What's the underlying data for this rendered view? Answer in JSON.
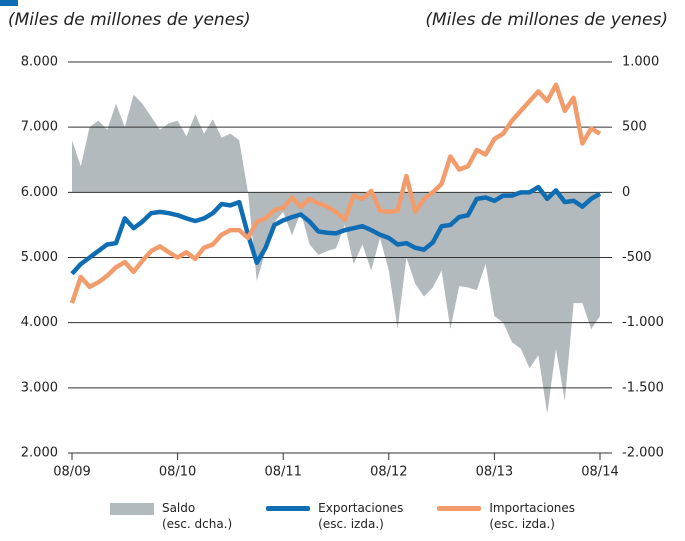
{
  "chart_data": {
    "type": "line",
    "y_label": "(Miles de millones de yenes)",
    "y2_label": "(Miles de millones de yenes)",
    "categories": [
      "08/09",
      null,
      null,
      null,
      null,
      null,
      null,
      null,
      null,
      null,
      null,
      null,
      "08/10",
      null,
      null,
      null,
      null,
      null,
      null,
      null,
      null,
      null,
      null,
      null,
      "08/11",
      null,
      null,
      null,
      null,
      null,
      null,
      null,
      null,
      null,
      null,
      null,
      "08/12",
      null,
      null,
      null,
      null,
      null,
      null,
      null,
      null,
      null,
      null,
      null,
      "08/13",
      null,
      null,
      null,
      null,
      null,
      null,
      null,
      null,
      null,
      null,
      null,
      "08/14"
    ],
    "ylim": [
      2000,
      8000
    ],
    "yticks": [
      {
        "value": 2000,
        "label": "2.000"
      },
      {
        "value": 3000,
        "label": "3.000"
      },
      {
        "value": 4000,
        "label": "4.000"
      },
      {
        "value": 5000,
        "label": "5.000"
      },
      {
        "value": 6000,
        "label": "6.000"
      },
      {
        "value": 7000,
        "label": "7.000"
      },
      {
        "value": 8000,
        "label": "8.000"
      }
    ],
    "y2lim": [
      -2000,
      1000
    ],
    "y2ticks": [
      {
        "value": -2000,
        "label": "-2.000"
      },
      {
        "value": -1500,
        "label": "-1.500"
      },
      {
        "value": -1000,
        "label": "-1.000"
      },
      -500,
      0,
      500,
      {
        "value": 1000,
        "label": "1.000"
      }
    ],
    "grid": true,
    "series": [
      {
        "name": "Saldo\n(esc. dcha.)",
        "type": "area",
        "axis": "y2",
        "color": "#b3babe",
        "values": [
          400,
          200,
          500,
          550,
          480,
          680,
          500,
          750,
          680,
          580,
          480,
          530,
          550,
          430,
          600,
          450,
          560,
          420,
          450,
          400,
          0,
          -680,
          -450,
          -230,
          -150,
          -330,
          -150,
          -400,
          -480,
          -450,
          -430,
          -250,
          -550,
          -400,
          -600,
          -350,
          -600,
          -1050,
          -500,
          -700,
          -800,
          -730,
          -600,
          -1050,
          -720,
          -730,
          -750,
          -550,
          -950,
          -1000,
          -1150,
          -1200,
          -1350,
          -1250,
          -1700,
          -1200,
          -1600,
          -850,
          -850,
          -1050,
          -950
        ]
      },
      {
        "name": "Exportaciones\n(esc. izda.)",
        "type": "line",
        "color": "#0f6db3",
        "values": [
          4750,
          4900,
          5000,
          5100,
          5200,
          5220,
          5600,
          5450,
          5550,
          5680,
          5700,
          5680,
          5650,
          5600,
          5560,
          5600,
          5680,
          5820,
          5800,
          5850,
          5350,
          4920,
          5150,
          5500,
          5570,
          5620,
          5660,
          5550,
          5400,
          5380,
          5370,
          5420,
          5450,
          5480,
          5420,
          5350,
          5300,
          5200,
          5220,
          5150,
          5120,
          5230,
          5480,
          5500,
          5620,
          5650,
          5900,
          5920,
          5870,
          5950,
          5950,
          6000,
          6000,
          6080,
          5900,
          6030,
          5850,
          5870,
          5780,
          5900,
          5980
        ]
      },
      {
        "name": "Importaciones\n(esc. izda.)",
        "type": "line",
        "color": "#f29b6b",
        "values": [
          4300,
          4700,
          4550,
          4620,
          4720,
          4850,
          4930,
          4780,
          4950,
          5100,
          5170,
          5080,
          5000,
          5080,
          4980,
          5150,
          5200,
          5350,
          5420,
          5420,
          5300,
          5550,
          5600,
          5730,
          5760,
          5920,
          5780,
          5900,
          5830,
          5780,
          5700,
          5580,
          5950,
          5900,
          6020,
          5720,
          5700,
          5720,
          6250,
          5700,
          5900,
          6000,
          6130,
          6550,
          6350,
          6400,
          6650,
          6580,
          6820,
          6900,
          7100,
          7250,
          7400,
          7550,
          7400,
          7650,
          7250,
          7450,
          6750,
          6980,
          6900
        ]
      }
    ]
  }
}
